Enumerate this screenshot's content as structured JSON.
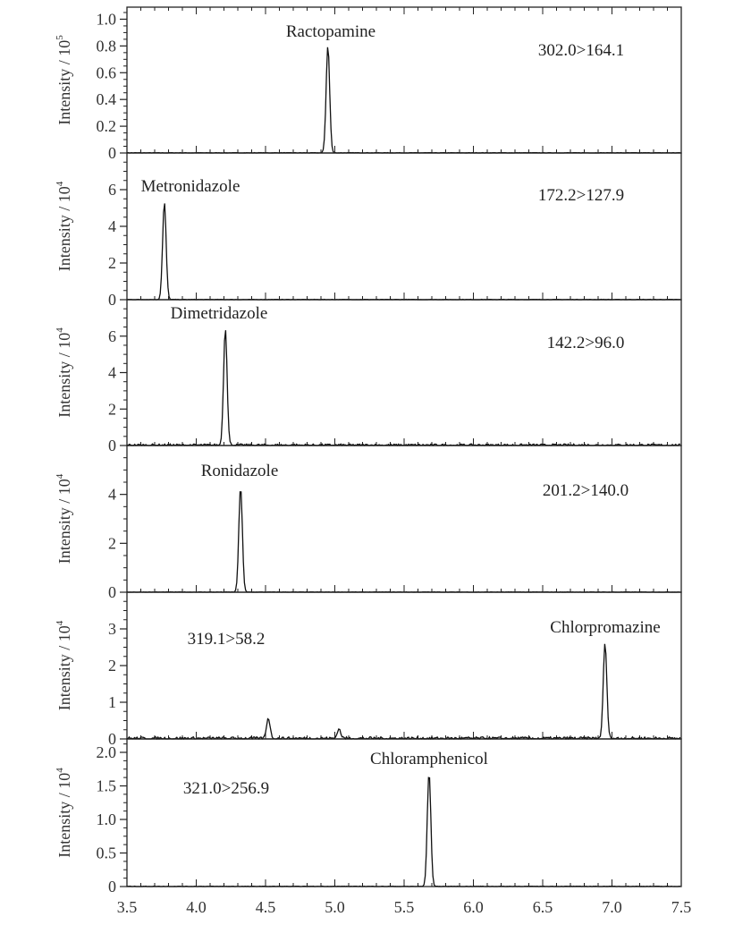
{
  "chart_data": {
    "type": "line",
    "xlabel": "",
    "xlim": [
      3.5,
      7.5
    ],
    "x_ticks": [
      "3.5",
      "4.0",
      "4.5",
      "5.0",
      "5.5",
      "6.0",
      "6.5",
      "7.0",
      "7.5"
    ],
    "grid": false,
    "panels": [
      {
        "ylabel": "Intensity / 10",
        "exp": "5",
        "ylim": [
          0,
          1.09
        ],
        "y_ticks": [
          "0",
          "0.2",
          "0.4",
          "0.6",
          "0.8",
          "1.0"
        ],
        "y_tick_values": [
          0,
          0.2,
          0.4,
          0.6,
          0.8,
          1.0
        ],
        "compound": "Ractopamine",
        "transition": "302.0>164.1",
        "peaks": [
          {
            "x": 4.95,
            "y": 0.8
          }
        ],
        "noise": 0.004
      },
      {
        "ylabel": "Intensity / 10",
        "exp": "4",
        "ylim": [
          0,
          8
        ],
        "y_ticks": [
          "0",
          "2",
          "4",
          "6"
        ],
        "y_tick_values": [
          0,
          2,
          4,
          6
        ],
        "compound": "Metronidazole",
        "transition": "172.2>127.9",
        "peaks": [
          {
            "x": 3.77,
            "y": 5.3
          }
        ],
        "noise": 0.03
      },
      {
        "ylabel": "Intensity / 10",
        "exp": "4",
        "ylim": [
          0,
          8
        ],
        "y_ticks": [
          "0",
          "2",
          "4",
          "6"
        ],
        "y_tick_values": [
          0,
          2,
          4,
          6
        ],
        "compound": "Dimetridazole",
        "transition": "142.2>96.0",
        "peaks": [
          {
            "x": 4.21,
            "y": 6.4
          }
        ],
        "noise": 0.12
      },
      {
        "ylabel": "Intensity / 10",
        "exp": "4",
        "ylim": [
          0,
          6
        ],
        "y_ticks": [
          "0",
          "2",
          "4"
        ],
        "y_tick_values": [
          0,
          2,
          4
        ],
        "compound": "Ronidazole",
        "transition": "201.2>140.0",
        "peaks": [
          {
            "x": 4.32,
            "y": 4.3
          }
        ],
        "noise": 0.02
      },
      {
        "ylabel": "Intensity / 10",
        "exp": "4",
        "ylim": [
          0,
          4
        ],
        "y_ticks": [
          "0",
          "1",
          "2",
          "3"
        ],
        "y_tick_values": [
          0,
          1,
          2,
          3
        ],
        "compound": "Chlorpromazine",
        "transition": "319.1>58.2",
        "peaks": [
          {
            "x": 6.95,
            "y": 2.6
          },
          {
            "x": 4.52,
            "y": 0.55
          },
          {
            "x": 5.03,
            "y": 0.25
          }
        ],
        "noise": 0.08
      },
      {
        "ylabel": "Intensity / 10",
        "exp": "4",
        "ylim": [
          0,
          2.2
        ],
        "y_ticks": [
          "0",
          "0.5",
          "1.0",
          "1.5",
          "2.0"
        ],
        "y_tick_values": [
          0,
          0.5,
          1.0,
          1.5,
          2.0
        ],
        "compound": "Chloramphenicol",
        "transition": "321.0>256.9",
        "peaks": [
          {
            "x": 5.68,
            "y": 1.7
          }
        ],
        "noise": 0.008
      }
    ]
  }
}
